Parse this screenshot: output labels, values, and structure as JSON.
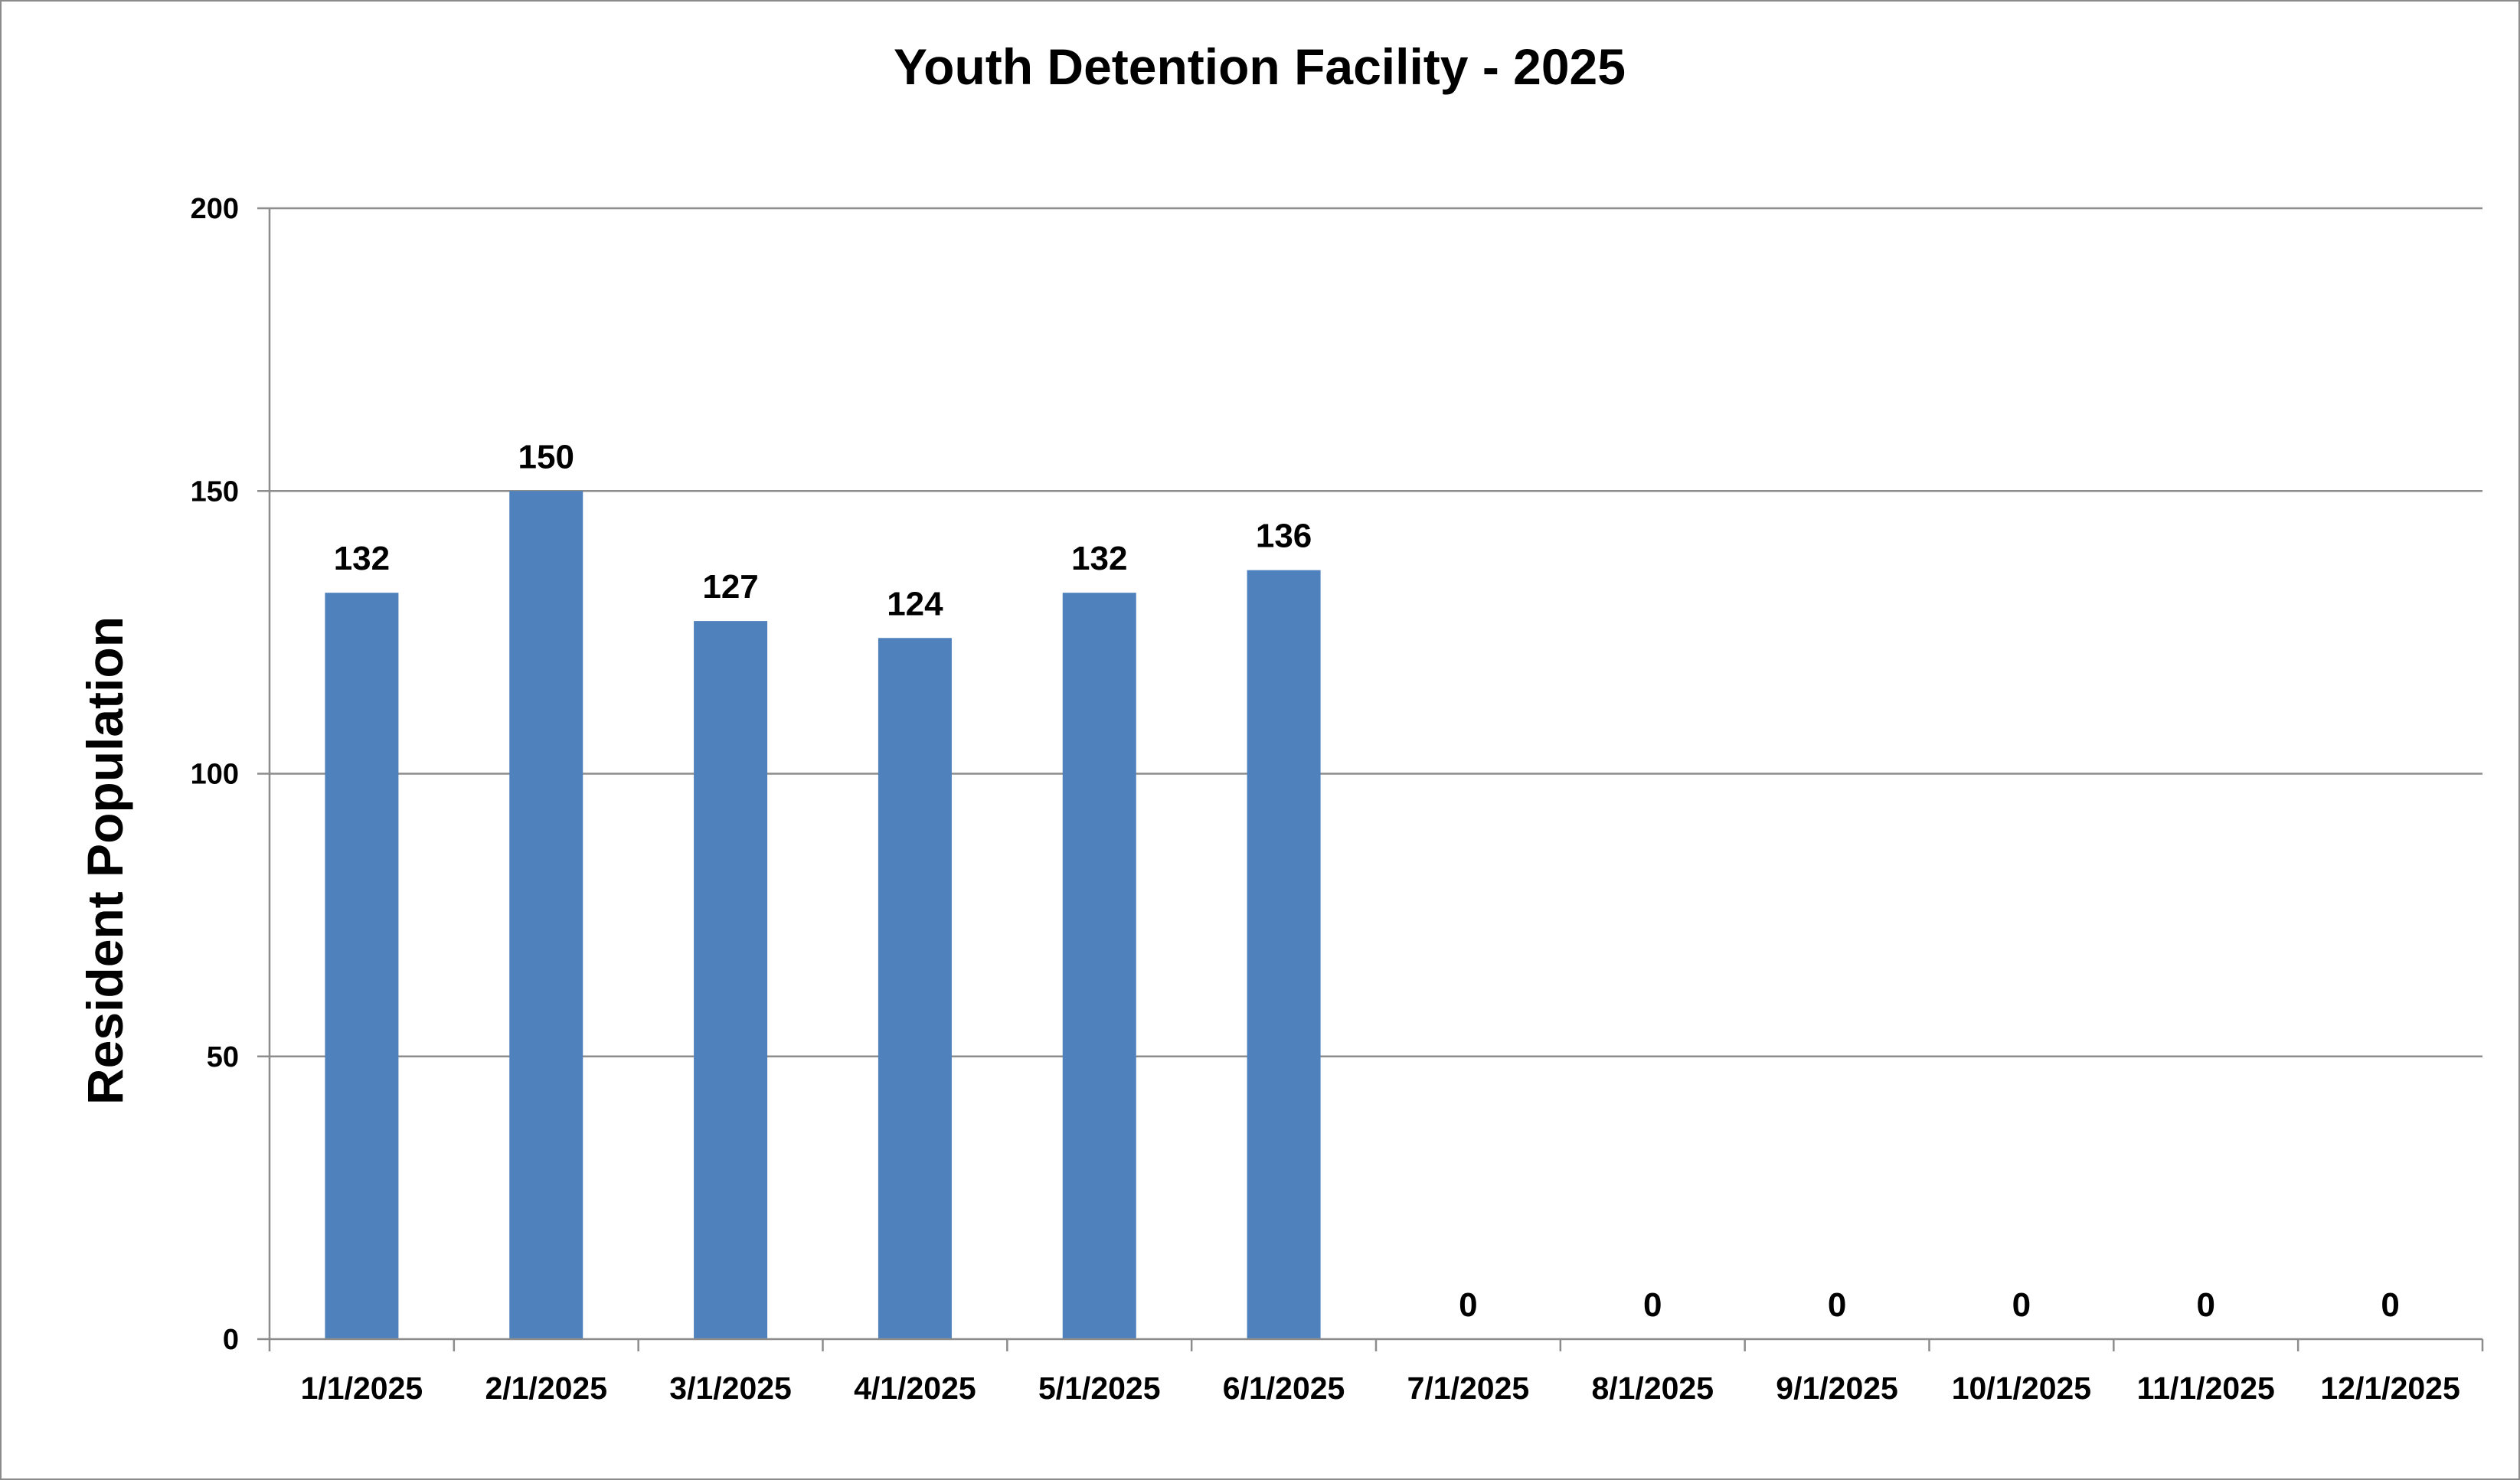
{
  "chart_data": {
    "type": "bar",
    "title": "Youth Detention Facility - 2025",
    "xlabel": "",
    "ylabel": "Resident Population",
    "categories": [
      "1/1/2025",
      "2/1/2025",
      "3/1/2025",
      "4/1/2025",
      "5/1/2025",
      "6/1/2025",
      "7/1/2025",
      "8/1/2025",
      "9/1/2025",
      "10/1/2025",
      "11/1/2025",
      "12/1/2025"
    ],
    "values": [
      132,
      150,
      127,
      124,
      132,
      136,
      0,
      0,
      0,
      0,
      0,
      0
    ],
    "ylim": [
      0,
      200
    ],
    "yticks": [
      0,
      50,
      100,
      150,
      200
    ],
    "grid": true,
    "data_labels": true,
    "legend": "none",
    "bar_color": "#4f81bd",
    "gridline_color": "#8c8c8c",
    "axis_color": "#8c8c8c"
  }
}
